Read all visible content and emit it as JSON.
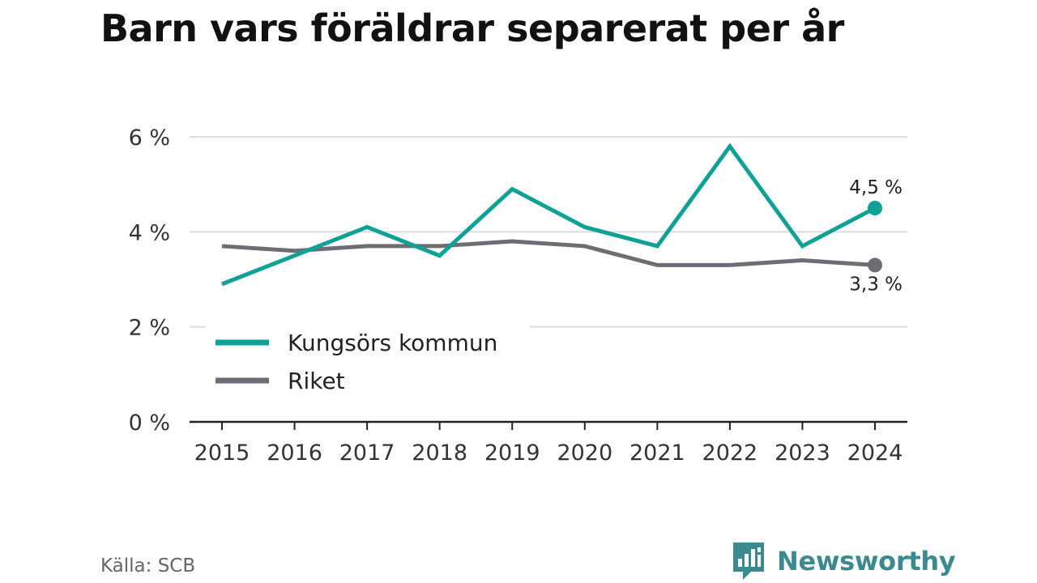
{
  "chart_data": {
    "type": "line",
    "title": "Barn vars föräldrar separerat per år",
    "x": [
      "2015",
      "2016",
      "2017",
      "2018",
      "2019",
      "2020",
      "2021",
      "2022",
      "2023",
      "2024"
    ],
    "series": [
      {
        "name": "Kungsörs kommun",
        "color": "#10a196",
        "values": [
          2.9,
          3.5,
          4.1,
          3.5,
          4.9,
          4.1,
          3.7,
          5.8,
          3.7,
          4.5
        ],
        "end_label": "4,5 %"
      },
      {
        "name": "Riket",
        "color": "#6d6d74",
        "values": [
          3.7,
          3.6,
          3.7,
          3.7,
          3.8,
          3.7,
          3.3,
          3.3,
          3.4,
          3.3
        ],
        "end_label": "3,3 %"
      }
    ],
    "yticks": [
      0,
      2,
      4,
      6
    ],
    "ytick_labels": [
      "0 %",
      "2 %",
      "4 %",
      "6 %"
    ],
    "ylim": [
      0,
      6
    ],
    "grid": true,
    "legend_position": "lower-left"
  },
  "footer": {
    "source": "Källa: SCB",
    "brand": "Newsworthy",
    "brand_icon": "bar-chart-speech-icon",
    "brand_color": "#3a8a8f"
  }
}
